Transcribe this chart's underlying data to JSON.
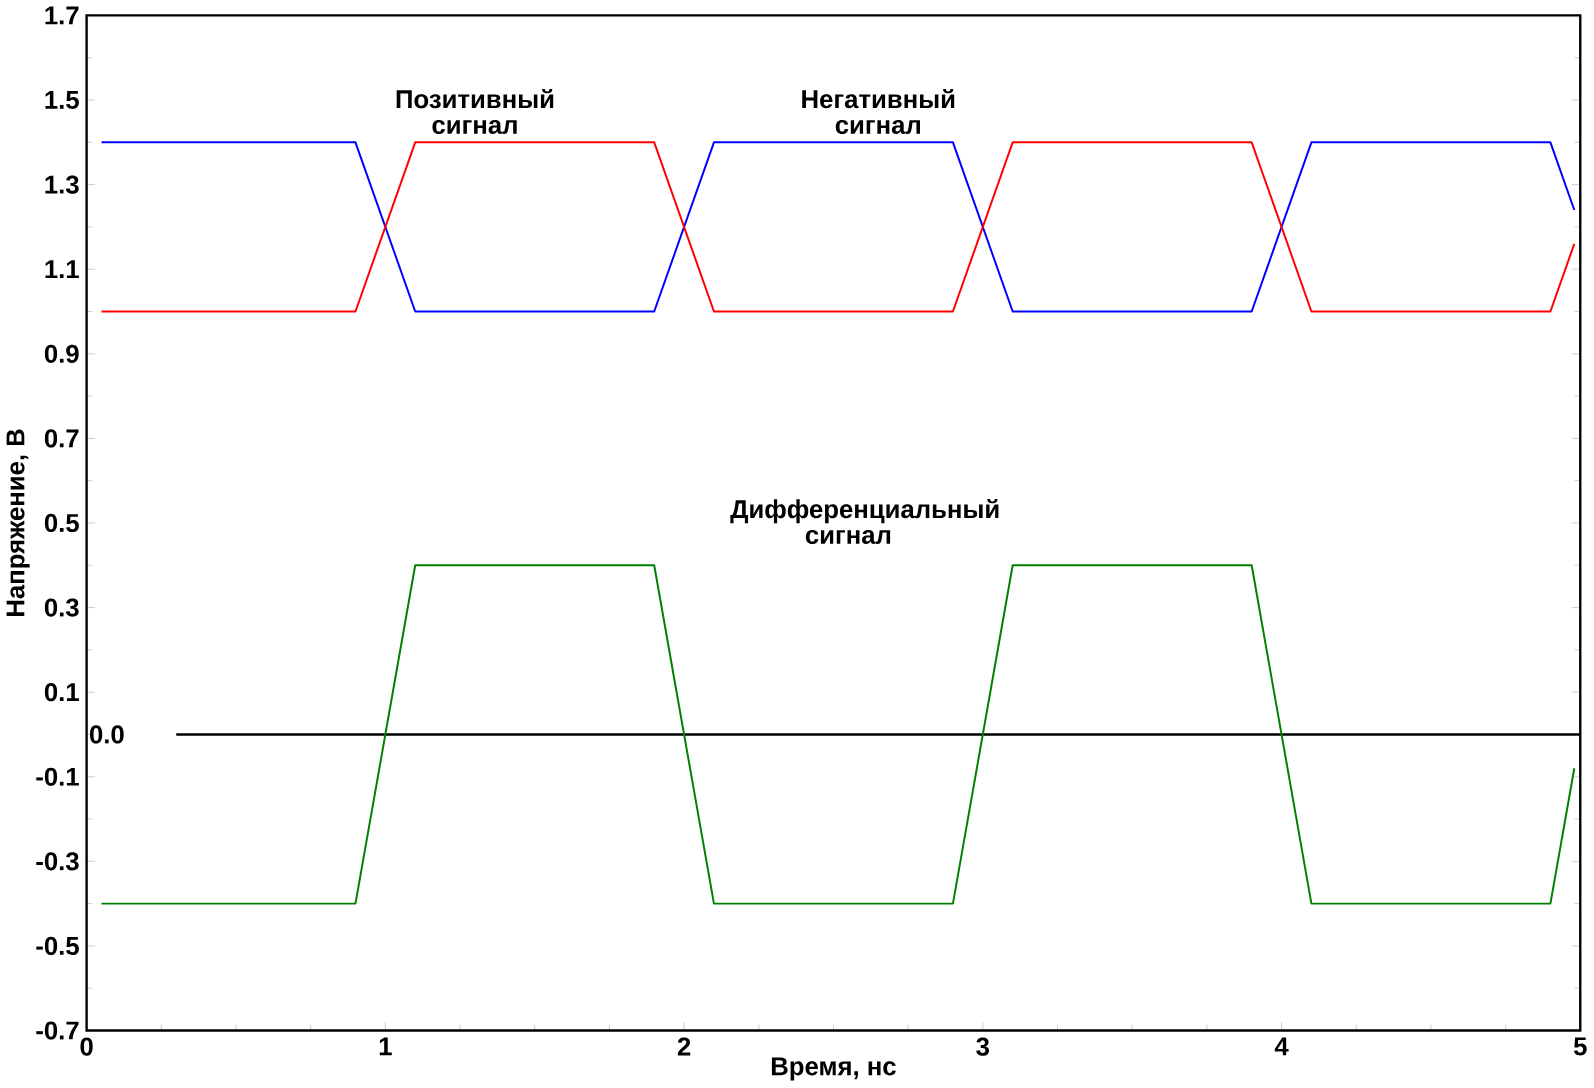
{
  "chart_data": {
    "type": "line",
    "xlabel": "Время, нс",
    "ylabel": "Напряжение, В",
    "x": [
      0.05,
      0.9,
      1.1,
      1.9,
      2.1,
      2.9,
      3.1,
      3.9,
      4.1,
      4.9,
      4.98
    ],
    "series": [
      {
        "color": "#0000ff",
        "values": [
          1.4,
          1.4,
          1.0,
          1.0,
          1.4,
          1.4,
          1.0,
          1.0,
          1.4,
          1.4,
          1.24
        ]
      },
      {
        "color": "#ff0000",
        "values": [
          1.0,
          1.0,
          1.4,
          1.4,
          1.0,
          1.0,
          1.4,
          1.4,
          1.0,
          1.0,
          1.16
        ]
      },
      {
        "color": "#008000",
        "values": [
          -0.4,
          -0.4,
          0.4,
          0.4,
          -0.4,
          -0.4,
          0.4,
          0.4,
          -0.4,
          -0.4,
          -0.08
        ]
      }
    ],
    "xlim": [
      0,
      5
    ],
    "ylim": [
      -0.7,
      1.7
    ],
    "xticks": [
      0,
      1,
      2,
      3,
      4,
      5
    ],
    "yticks": [
      -0.7,
      -0.5,
      -0.3,
      -0.1,
      0.1,
      0.3,
      0.5,
      0.7,
      0.9,
      1.1,
      1.3,
      1.5,
      1.7
    ],
    "ref_lines": [
      {
        "axis": "y",
        "value": 0,
        "label": "0.0",
        "color": "#000000"
      }
    ],
    "annotations": [
      {
        "text": "Позитивный сигнал",
        "x": 1.3,
        "y": 1.4
      },
      {
        "text": "Негативный сигнал",
        "x": 2.65,
        "y": 1.4
      },
      "Дифференциальный сигнал"
    ],
    "grid": false,
    "marker": "none",
    "line_style": "solid"
  }
}
